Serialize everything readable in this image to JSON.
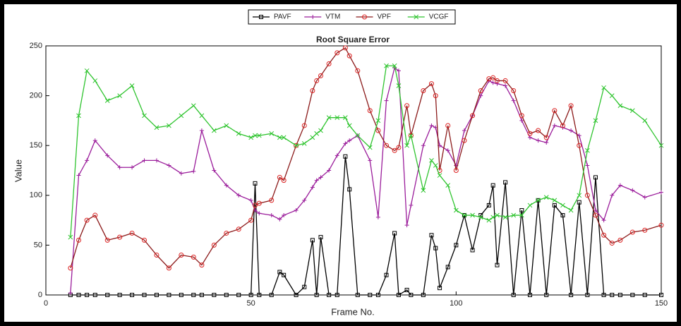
{
  "chart_data": {
    "type": "line",
    "title": "Root Square Error",
    "xlabel": "Frame No.",
    "ylabel": "Value",
    "x": [
      6,
      8,
      10,
      12,
      15,
      18,
      21,
      24,
      27,
      30,
      33,
      36,
      38,
      41,
      44,
      47,
      50,
      51,
      52,
      55,
      57,
      58,
      61,
      63,
      65,
      66,
      67,
      69,
      71,
      73,
      74,
      76,
      79,
      81,
      83,
      85,
      86,
      88,
      89,
      92,
      94,
      95,
      96,
      98,
      100,
      102,
      104,
      106,
      108,
      109,
      110,
      112,
      114,
      116,
      118,
      120,
      122,
      124,
      126,
      128,
      130,
      132,
      134,
      136,
      138,
      140,
      143,
      146,
      150
    ],
    "series": [
      {
        "name": "PAVF",
        "color": "#000000",
        "marker": "square",
        "values": [
          0,
          0,
          0,
          0,
          0,
          0,
          0,
          0,
          0,
          0,
          0,
          0,
          0,
          0,
          0,
          0,
          0,
          112,
          0,
          0,
          23,
          20,
          0,
          8,
          55,
          0,
          58,
          0,
          0,
          139,
          106,
          0,
          0,
          0,
          20,
          62,
          0,
          5,
          0,
          0,
          60,
          47,
          7,
          28,
          50,
          80,
          45,
          80,
          90,
          110,
          30,
          113,
          0,
          85,
          0,
          95,
          0,
          90,
          80,
          0,
          93,
          0,
          118,
          0,
          0,
          0,
          0,
          0,
          0
        ]
      },
      {
        "name": "VTM",
        "color": "#9b1d9b",
        "marker": "plus",
        "values": [
          2,
          120,
          135,
          155,
          140,
          128,
          128,
          135,
          135,
          130,
          122,
          124,
          165,
          125,
          110,
          100,
          95,
          85,
          82,
          80,
          76,
          80,
          85,
          95,
          108,
          115,
          118,
          125,
          140,
          152,
          155,
          160,
          135,
          78,
          195,
          228,
          225,
          70,
          90,
          150,
          170,
          168,
          150,
          145,
          130,
          165,
          180,
          200,
          215,
          213,
          212,
          210,
          195,
          175,
          158,
          155,
          153,
          170,
          168,
          165,
          160,
          130,
          85,
          75,
          100,
          110,
          105,
          98,
          103
        ]
      },
      {
        "name": "VPF",
        "color": "#8b1a1a",
        "marker": "circle",
        "values": [
          27,
          55,
          75,
          80,
          55,
          58,
          62,
          55,
          40,
          27,
          40,
          38,
          30,
          50,
          62,
          66,
          75,
          90,
          92,
          95,
          118,
          115,
          150,
          170,
          205,
          215,
          220,
          232,
          243,
          248,
          240,
          225,
          185,
          165,
          150,
          145,
          148,
          190,
          160,
          205,
          212,
          200,
          125,
          170,
          125,
          155,
          180,
          205,
          217,
          218,
          215,
          215,
          205,
          180,
          162,
          165,
          158,
          185,
          170,
          190,
          150,
          100,
          80,
          60,
          52,
          55,
          63,
          65,
          70
        ]
      },
      {
        "name": "VCGF",
        "color": "#2fc42f",
        "marker": "cross",
        "values": [
          58,
          180,
          225,
          215,
          195,
          200,
          210,
          180,
          168,
          170,
          180,
          190,
          180,
          165,
          170,
          162,
          158,
          160,
          160,
          162,
          158,
          158,
          150,
          152,
          158,
          162,
          165,
          178,
          178,
          178,
          170,
          160,
          148,
          175,
          230,
          230,
          210,
          150,
          160,
          105,
          135,
          130,
          120,
          110,
          85,
          80,
          80,
          78,
          75,
          78,
          80,
          78,
          80,
          80,
          90,
          95,
          98,
          95,
          90,
          85,
          100,
          145,
          175,
          208,
          200,
          190,
          185,
          175,
          150
        ]
      }
    ],
    "xlim": [
      0,
      150
    ],
    "xticks": [
      0,
      50,
      100,
      150
    ],
    "ylim": [
      0,
      250
    ],
    "yticks": [
      0,
      50,
      100,
      150,
      200,
      250
    ],
    "legend": "top"
  }
}
